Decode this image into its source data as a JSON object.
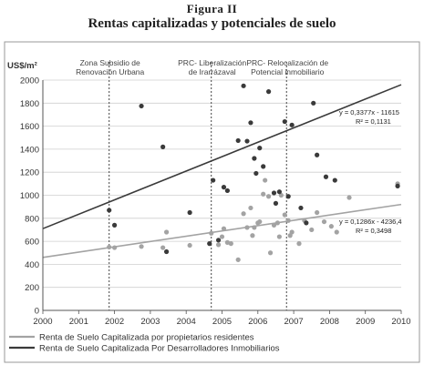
{
  "figure": {
    "label": "Figura II",
    "title": "Rentas capitalizadas y potenciales de suelo"
  },
  "chart_data": {
    "type": "scatter",
    "ylabel": "US$/m²",
    "xlabel": "",
    "xlim": [
      2000,
      2010
    ],
    "ylim": [
      0,
      2000
    ],
    "x_ticks": [
      "2000",
      "2001",
      "2002",
      "2003",
      "2004",
      "2005",
      "2006",
      "2007",
      "2008",
      "2009",
      "2010"
    ],
    "y_ticks": [
      "0",
      "200",
      "400",
      "600",
      "800",
      "1000",
      "1200",
      "1400",
      "1600",
      "1800",
      "2000"
    ],
    "grid": "horizontal",
    "legend_position": "bottom",
    "colors": {
      "residents": "#a3a3a3",
      "developers": "#3a3a3a"
    },
    "annotations": [
      {
        "x": 2001.85,
        "lines": [
          "Zona Subsidio de",
          "Renovación Urbana"
        ]
      },
      {
        "x": 2004.7,
        "lines": [
          "PRC- Liberalización",
          "de Irarrázaval"
        ]
      },
      {
        "x": 2006.8,
        "lines": [
          "PRC- Relocalización de",
          "Potencial inmobiliario"
        ]
      }
    ],
    "series": [
      {
        "key": "residents",
        "name": "Renta de Suelo Capitalizada por propietarios  residentes",
        "equation": "y = 0,1286x - 4236,4",
        "r2": "R² = 0,3498",
        "trend": {
          "x": [
            2000,
            2010
          ],
          "y": [
            460,
            920
          ]
        },
        "points": [
          [
            2001.85,
            550
          ],
          [
            2002.0,
            545
          ],
          [
            2002.75,
            555
          ],
          [
            2003.35,
            545
          ],
          [
            2003.45,
            680
          ],
          [
            2004.1,
            565
          ],
          [
            2004.7,
            670
          ],
          [
            2004.9,
            570
          ],
          [
            2005.0,
            640
          ],
          [
            2005.05,
            710
          ],
          [
            2005.15,
            590
          ],
          [
            2005.25,
            580
          ],
          [
            2005.45,
            440
          ],
          [
            2005.6,
            840
          ],
          [
            2005.7,
            720
          ],
          [
            2005.8,
            890
          ],
          [
            2005.85,
            650
          ],
          [
            2005.9,
            720
          ],
          [
            2006.0,
            760
          ],
          [
            2006.05,
            770
          ],
          [
            2006.15,
            1010
          ],
          [
            2006.2,
            1130
          ],
          [
            2006.3,
            990
          ],
          [
            2006.35,
            500
          ],
          [
            2006.45,
            740
          ],
          [
            2006.55,
            760
          ],
          [
            2006.6,
            640
          ],
          [
            2006.65,
            1000
          ],
          [
            2006.75,
            830
          ],
          [
            2006.85,
            780
          ],
          [
            2006.9,
            650
          ],
          [
            2006.95,
            680
          ],
          [
            2007.15,
            580
          ],
          [
            2007.3,
            780
          ],
          [
            2007.5,
            700
          ],
          [
            2007.65,
            850
          ],
          [
            2007.85,
            770
          ],
          [
            2008.05,
            730
          ],
          [
            2008.2,
            680
          ],
          [
            2008.55,
            980
          ],
          [
            2009.9,
            1100
          ]
        ]
      },
      {
        "key": "developers",
        "name": "Renta de Suelo Capitalizada Por Desarrolladores Inmobiliarios",
        "equation": "y = 0,3377x - 11615",
        "r2": "R² = 0,1131",
        "trend": {
          "x": [
            2000,
            2010
          ],
          "y": [
            710,
            1960
          ]
        },
        "points": [
          [
            2001.85,
            870
          ],
          [
            2002.0,
            740
          ],
          [
            2002.75,
            1775
          ],
          [
            2003.35,
            1420
          ],
          [
            2003.45,
            510
          ],
          [
            2004.1,
            850
          ],
          [
            2004.65,
            580
          ],
          [
            2004.75,
            1130
          ],
          [
            2004.9,
            610
          ],
          [
            2005.05,
            1070
          ],
          [
            2005.15,
            1040
          ],
          [
            2005.45,
            1475
          ],
          [
            2005.6,
            1950
          ],
          [
            2005.7,
            1470
          ],
          [
            2005.8,
            1630
          ],
          [
            2005.9,
            1320
          ],
          [
            2005.95,
            1190
          ],
          [
            2006.05,
            1410
          ],
          [
            2006.15,
            1250
          ],
          [
            2006.3,
            1900
          ],
          [
            2006.45,
            1020
          ],
          [
            2006.5,
            930
          ],
          [
            2006.6,
            1030
          ],
          [
            2006.75,
            1640
          ],
          [
            2006.85,
            990
          ],
          [
            2006.95,
            1610
          ],
          [
            2007.2,
            890
          ],
          [
            2007.35,
            760
          ],
          [
            2007.55,
            1800
          ],
          [
            2007.65,
            1350
          ],
          [
            2007.9,
            1160
          ],
          [
            2008.15,
            1130
          ],
          [
            2009.9,
            1080
          ]
        ]
      }
    ]
  }
}
